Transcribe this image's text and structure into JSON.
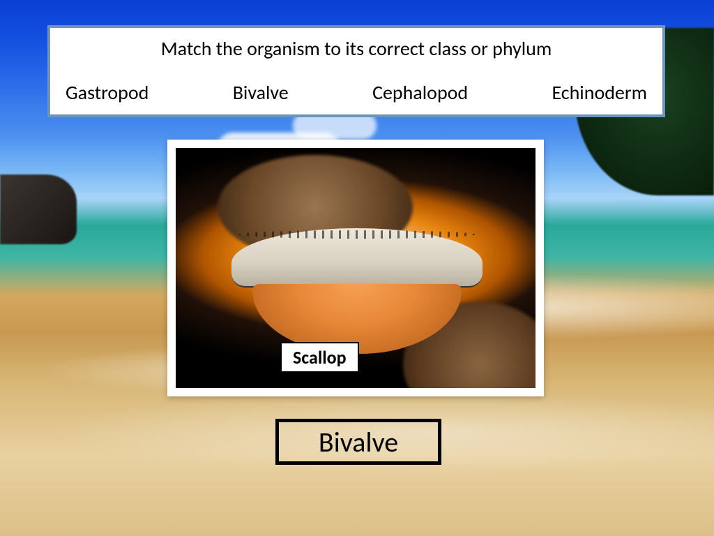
{
  "background": {
    "sky_top_color": "#0a3fd4",
    "sky_mid_color": "#4a8ff0",
    "sea_color": "#2aa89a",
    "sand_color": "#d4a85f",
    "cloud_color": "#ffffff",
    "tree_color": "#0d2810",
    "rock_color": "#1a1510"
  },
  "question": {
    "panel_bg": "#ffffff",
    "panel_border_color": "#6b95bc",
    "panel_border_width": 4,
    "title": "Match the organism to its correct class or phylum",
    "title_fontsize": 28,
    "options": [
      "Gastropod",
      "Bivalve",
      "Cephalopod",
      "Echinoderm"
    ],
    "option_fontsize": 28,
    "text_color": "#000000"
  },
  "organism": {
    "frame_bg": "#ffffff",
    "frame_padding": 12,
    "label": "Scallop",
    "label_bg": "#ffffff",
    "label_border_color": "#000000",
    "label_fontsize": 26,
    "shell_top_color": "#e8e0d0",
    "shell_bottom_color": "#e88838",
    "shell_eye_color": "#111111"
  },
  "answer": {
    "text": "Bivalve",
    "fontsize": 40,
    "border_color": "#000000",
    "border_width": 5,
    "bg": "transparent",
    "text_color": "#000000"
  }
}
